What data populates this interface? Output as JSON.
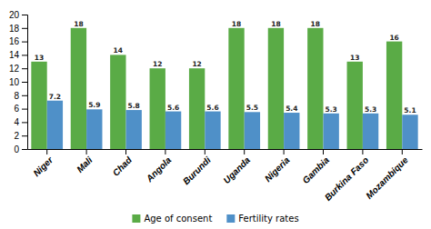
{
  "chart_data": {
    "type": "bar",
    "categories": [
      "Niger",
      "Mali",
      "Chad",
      "Angola",
      "Burundi",
      "Uganda",
      "Nigeria",
      "Gambia",
      "Burkina Faso",
      "Mozambique"
    ],
    "series": [
      {
        "name": "Age of consent",
        "color": "#5AAB46",
        "values": [
          13,
          18,
          14,
          12,
          12,
          18,
          18,
          18,
          13,
          16
        ]
      },
      {
        "name": "Fertility rates",
        "color": "#4F90C8",
        "values": [
          7.2,
          5.9,
          5.8,
          5.6,
          5.6,
          5.5,
          5.4,
          5.3,
          5.3,
          5.1
        ]
      }
    ],
    "ylim": [
      0,
      20
    ],
    "yticks": [
      0,
      2,
      4,
      6,
      8,
      10,
      12,
      14,
      16,
      18,
      20
    ],
    "grid": false,
    "legend": "bottom",
    "data_labels": true
  }
}
